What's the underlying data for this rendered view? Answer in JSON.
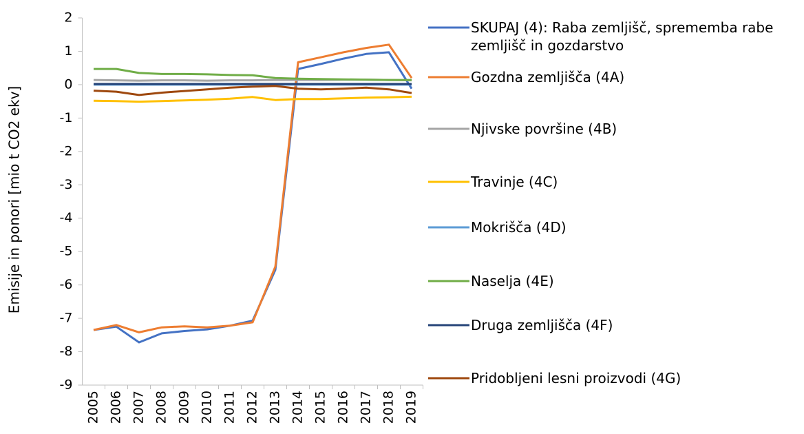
{
  "chart_data": {
    "type": "line",
    "y_label": "Emisije in ponori [mio t CO2 ekv]",
    "categories": [
      "2005",
      "2006",
      "2007",
      "2008",
      "2009",
      "2010",
      "2011",
      "2012",
      "2013",
      "2014",
      "2015",
      "2016",
      "2017",
      "2018",
      "2019"
    ],
    "ylim": [
      -9,
      2
    ],
    "yticks": [
      -9,
      -8,
      -7,
      -6,
      -5,
      -4,
      -3,
      -2,
      -1,
      0,
      1,
      2
    ],
    "grid": false,
    "legend": "right",
    "series": [
      {
        "name": "SKUPAJ (4): Raba zemljišč, sprememba rabe zemljišč in gozdarstvo",
        "color": "#4472c4",
        "values": [
          -7.35,
          -7.25,
          -7.72,
          -7.45,
          -7.38,
          -7.33,
          -7.22,
          -7.07,
          -5.55,
          0.47,
          0.62,
          0.78,
          0.92,
          0.97,
          -0.12
        ]
      },
      {
        "name": "Gozdna zemljišča (4A)",
        "color": "#ed7d31",
        "values": [
          -7.35,
          -7.2,
          -7.42,
          -7.27,
          -7.24,
          -7.27,
          -7.22,
          -7.12,
          -5.45,
          0.67,
          0.82,
          0.97,
          1.1,
          1.2,
          0.2
        ]
      },
      {
        "name": "Njivske površine (4B)",
        "color": "#a5a5a5",
        "values": [
          0.14,
          0.13,
          0.12,
          0.13,
          0.13,
          0.12,
          0.13,
          0.13,
          0.14,
          0.14,
          0.14,
          0.15,
          0.15,
          0.14,
          0.13
        ]
      },
      {
        "name": "Travinje (4C)",
        "color": "#ffc000",
        "values": [
          -0.48,
          -0.49,
          -0.51,
          -0.49,
          -0.47,
          -0.45,
          -0.42,
          -0.37,
          -0.46,
          -0.43,
          -0.43,
          -0.41,
          -0.39,
          -0.38,
          -0.36
        ]
      },
      {
        "name": "Mokrišča (4D)",
        "color": "#5b9bd5",
        "values": [
          0,
          0,
          0,
          0,
          0,
          0,
          0,
          0,
          0,
          0,
          0,
          0,
          0,
          0,
          0
        ]
      },
      {
        "name": "Naselja (4E)",
        "color": "#70ad47",
        "values": [
          0.47,
          0.47,
          0.35,
          0.32,
          0.32,
          0.31,
          0.29,
          0.28,
          0.2,
          0.18,
          0.17,
          0.16,
          0.15,
          0.14,
          0.14
        ]
      },
      {
        "name": "Druga zemljišča (4F)",
        "color": "#264478",
        "values": [
          0.02,
          0.02,
          0.02,
          0.02,
          0.02,
          0.02,
          0.02,
          0.02,
          0.02,
          0.02,
          0.02,
          0.02,
          0.02,
          0.02,
          0.02
        ]
      },
      {
        "name": "Pridobljeni lesni proizvodi (4G)",
        "color": "#9e480e",
        "values": [
          -0.18,
          -0.21,
          -0.31,
          -0.24,
          -0.19,
          -0.14,
          -0.09,
          -0.06,
          -0.04,
          -0.12,
          -0.14,
          -0.12,
          -0.09,
          -0.14,
          -0.25
        ]
      }
    ]
  }
}
